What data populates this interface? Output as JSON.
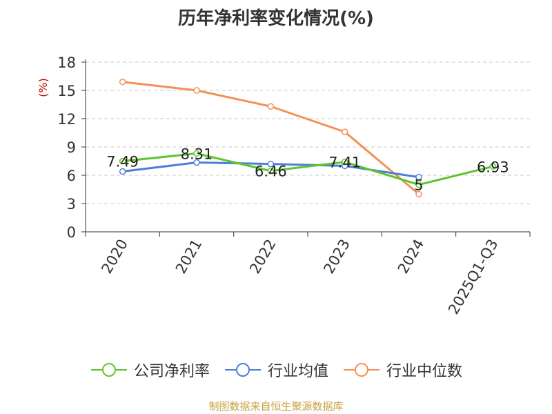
{
  "title": "历年净利率变化情况(%)",
  "source": "制图数据来自恒生聚源数据库",
  "chart_data": {
    "type": "line",
    "categories": [
      "2020",
      "2021",
      "2022",
      "2023",
      "2024",
      "2025Q1-Q3"
    ],
    "ylabel": "(%)",
    "ylim": [
      0,
      18
    ],
    "yticks": [
      0,
      3,
      6,
      9,
      12,
      15,
      18
    ],
    "grid": true,
    "legend_position": "bottom",
    "series": [
      {
        "name": "公司净利率",
        "color": "#5fc42d",
        "values": [
          7.49,
          8.31,
          6.46,
          7.41,
          5,
          6.93
        ],
        "labels": [
          "7.49",
          "8.31",
          "6.46",
          "7.41",
          "5",
          "6.93"
        ]
      },
      {
        "name": "行业均值",
        "color": "#4a7fd8",
        "values": [
          6.4,
          7.35,
          7.2,
          7.0,
          5.8,
          null
        ]
      },
      {
        "name": "行业中位数",
        "color": "#f59055",
        "values": [
          15.9,
          15.0,
          13.3,
          10.6,
          4.0,
          null
        ]
      }
    ]
  }
}
